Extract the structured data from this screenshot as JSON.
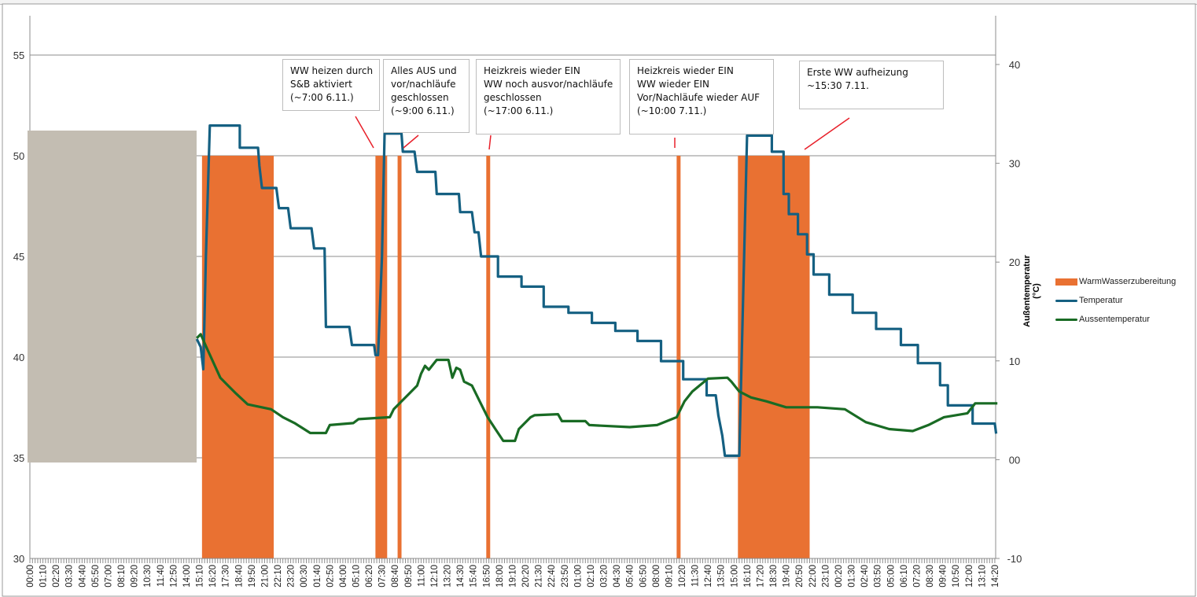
{
  "chart_data": {
    "type": "bar+line",
    "title": "",
    "xlabel": "",
    "ylabel_left": "",
    "ylabel_right": "Außentemperatur (°C)",
    "ylim_left": [
      30,
      55
    ],
    "yticks_left": [
      "30",
      "35",
      "40",
      "45",
      "50",
      "55"
    ],
    "ylim_right": [
      -10,
      40
    ],
    "yticks_right": [
      "-10",
      "00",
      "10",
      "20",
      "30",
      "40"
    ],
    "grid": true,
    "legend_position": "right",
    "x_tick_labels": [
      "00:00",
      "01:10",
      "02:20",
      "03:30",
      "04:40",
      "05:50",
      "07:00",
      "08:10",
      "09:20",
      "10:30",
      "11:40",
      "12:50",
      "14:00",
      "15:10",
      "16:20",
      "17:30",
      "18:40",
      "19:50",
      "21:00",
      "22:10",
      "23:20",
      "00:30",
      "01:40",
      "02:50",
      "04:00",
      "05:10",
      "06:20",
      "07:30",
      "08:40",
      "09:50",
      "11:00",
      "12:10",
      "13:20",
      "14:30",
      "15:40",
      "16:50",
      "18:00",
      "19:10",
      "20:20",
      "21:30",
      "22:40",
      "23:50",
      "01:00",
      "02:10",
      "03:20",
      "04:30",
      "05:40",
      "06:50",
      "08:00",
      "09:10",
      "10:20",
      "11:30",
      "12:40",
      "13:50",
      "15:00",
      "16:10",
      "17:20",
      "18:30",
      "19:40",
      "20:50",
      "22:00",
      "23:10",
      "00:20",
      "01:30",
      "02:40",
      "03:50",
      "05:00",
      "06:10",
      "07:20",
      "08:30",
      "09:40",
      "10:50",
      "12:00",
      "13:10",
      "14:20"
    ],
    "series": [
      {
        "name": "WarmWasserzubereitung",
        "type": "bar",
        "axis": "left",
        "color": "#E97132",
        "active_ranges_by_tick_index": [
          [
            13.2,
            18.7
          ],
          [
            26.5,
            27.4
          ],
          [
            28.2,
            28.5
          ],
          [
            35.0,
            35.3
          ],
          [
            49.6,
            49.9
          ],
          [
            54.3,
            59.8
          ]
        ],
        "value": 50
      },
      {
        "name": "Temperatur",
        "type": "line",
        "axis": "left",
        "color": "#156082",
        "points_by_tick_index": [
          [
            12.8,
            40.9
          ],
          [
            13.1,
            40.5
          ],
          [
            13.3,
            39.4
          ],
          [
            13.5,
            45
          ],
          [
            13.8,
            51.5
          ],
          [
            16.1,
            51.5
          ],
          [
            16.1,
            50.4
          ],
          [
            17.5,
            50.4
          ],
          [
            17.6,
            49.5
          ],
          [
            17.8,
            48.4
          ],
          [
            18.9,
            48.4
          ],
          [
            19.1,
            47.4
          ],
          [
            19.8,
            47.4
          ],
          [
            20.0,
            46.4
          ],
          [
            21.6,
            46.4
          ],
          [
            21.8,
            45.4
          ],
          [
            22.6,
            45.4
          ],
          [
            22.7,
            41.5
          ],
          [
            24.5,
            41.5
          ],
          [
            24.7,
            40.6
          ],
          [
            26.4,
            40.6
          ],
          [
            26.5,
            40.1
          ],
          [
            26.7,
            40.1
          ],
          [
            27.0,
            45
          ],
          [
            27.2,
            51.1
          ],
          [
            28.5,
            51.1
          ],
          [
            28.6,
            50.2
          ],
          [
            29.5,
            50.2
          ],
          [
            29.7,
            49.2
          ],
          [
            31.1,
            49.2
          ],
          [
            31.2,
            48.1
          ],
          [
            32.9,
            48.1
          ],
          [
            33.0,
            47.2
          ],
          [
            33.9,
            47.2
          ],
          [
            34.1,
            46.2
          ],
          [
            34.4,
            46.2
          ],
          [
            34.6,
            45.0
          ],
          [
            35.9,
            45.0
          ],
          [
            35.9,
            44.0
          ],
          [
            37.7,
            44.0
          ],
          [
            37.7,
            43.5
          ],
          [
            39.4,
            43.5
          ],
          [
            39.4,
            42.5
          ],
          [
            41.3,
            42.5
          ],
          [
            41.3,
            42.2
          ],
          [
            43.1,
            42.2
          ],
          [
            43.1,
            41.7
          ],
          [
            44.9,
            41.7
          ],
          [
            44.9,
            41.3
          ],
          [
            46.6,
            41.3
          ],
          [
            46.6,
            40.8
          ],
          [
            48.4,
            40.8
          ],
          [
            48.4,
            39.8
          ],
          [
            50.1,
            39.8
          ],
          [
            50.1,
            38.9
          ],
          [
            51.9,
            38.9
          ],
          [
            51.9,
            38.1
          ],
          [
            52.6,
            38.1
          ],
          [
            52.8,
            37.1
          ],
          [
            53.1,
            36.1
          ],
          [
            53.3,
            35.1
          ],
          [
            54.4,
            35.1
          ],
          [
            55.0,
            51.0
          ],
          [
            56.9,
            51.0
          ],
          [
            56.9,
            50.2
          ],
          [
            57.8,
            50.2
          ],
          [
            57.8,
            48.1
          ],
          [
            58.2,
            48.1
          ],
          [
            58.2,
            47.1
          ],
          [
            58.9,
            47.1
          ],
          [
            58.9,
            46.1
          ],
          [
            59.6,
            46.1
          ],
          [
            59.6,
            45.1
          ],
          [
            60.1,
            45.1
          ],
          [
            60.1,
            44.1
          ],
          [
            61.3,
            44.1
          ],
          [
            61.3,
            43.1
          ],
          [
            63.1,
            43.1
          ],
          [
            63.1,
            42.2
          ],
          [
            64.9,
            42.2
          ],
          [
            64.9,
            41.4
          ],
          [
            66.8,
            41.4
          ],
          [
            66.8,
            40.6
          ],
          [
            68.1,
            40.6
          ],
          [
            68.1,
            39.7
          ],
          [
            69.8,
            39.7
          ],
          [
            69.8,
            38.6
          ],
          [
            70.4,
            38.6
          ],
          [
            70.4,
            37.6
          ],
          [
            72.3,
            37.6
          ],
          [
            72.3,
            36.7
          ],
          [
            74.0,
            36.7
          ],
          [
            74.1,
            36.2
          ]
        ]
      },
      {
        "name": "Aussentemperatur",
        "type": "line",
        "axis": "right",
        "color": "#196B24",
        "points_by_tick_index": [
          [
            12.8,
            12.3
          ],
          [
            13.1,
            12.7
          ],
          [
            13.5,
            11.5
          ],
          [
            14.6,
            8.3
          ],
          [
            15.2,
            7.5
          ],
          [
            15.8,
            6.7
          ],
          [
            16.7,
            5.6
          ],
          [
            18.5,
            5.1
          ],
          [
            19.4,
            4.3
          ],
          [
            20.3,
            3.7
          ],
          [
            21.5,
            2.7
          ],
          [
            22.7,
            2.7
          ],
          [
            23.0,
            3.5
          ],
          [
            24.8,
            3.7
          ],
          [
            25.2,
            4.1
          ],
          [
            27.6,
            4.3
          ],
          [
            27.9,
            5.1
          ],
          [
            28.5,
            5.9
          ],
          [
            29.1,
            6.7
          ],
          [
            29.7,
            7.5
          ],
          [
            30.0,
            8.7
          ],
          [
            30.3,
            9.5
          ],
          [
            30.6,
            9.1
          ],
          [
            31.2,
            10.1
          ],
          [
            32.1,
            10.1
          ],
          [
            32.4,
            8.3
          ],
          [
            32.7,
            9.3
          ],
          [
            33.0,
            9.1
          ],
          [
            33.3,
            7.9
          ],
          [
            33.9,
            7.5
          ],
          [
            34.5,
            5.9
          ],
          [
            35.1,
            4.3
          ],
          [
            35.7,
            3.1
          ],
          [
            36.3,
            1.9
          ],
          [
            37.2,
            1.9
          ],
          [
            37.5,
            3.1
          ],
          [
            38.4,
            4.3
          ],
          [
            38.7,
            4.5
          ],
          [
            40.5,
            4.6
          ],
          [
            40.8,
            3.9
          ],
          [
            42.6,
            3.9
          ],
          [
            42.9,
            3.5
          ],
          [
            46.0,
            3.3
          ],
          [
            48.1,
            3.5
          ],
          [
            49.6,
            4.3
          ],
          [
            50.2,
            5.9
          ],
          [
            50.8,
            6.9
          ],
          [
            52.0,
            8.2
          ],
          [
            53.5,
            8.3
          ],
          [
            53.8,
            7.9
          ],
          [
            54.4,
            6.9
          ],
          [
            55.3,
            6.3
          ],
          [
            56.5,
            5.9
          ],
          [
            58.0,
            5.3
          ],
          [
            60.4,
            5.3
          ],
          [
            62.5,
            5.1
          ],
          [
            64.1,
            3.8
          ],
          [
            65.9,
            3.1
          ],
          [
            67.7,
            2.9
          ],
          [
            68.9,
            3.5
          ],
          [
            70.1,
            4.3
          ],
          [
            71.9,
            4.7
          ],
          [
            72.5,
            5.7
          ],
          [
            74.2,
            5.7
          ]
        ]
      }
    ],
    "annotations": [
      {
        "text": "WW heizen durch\nS&B aktiviert\n(~7:00 6.11.)"
      },
      {
        "text": "Alles AUS und\nvor/nachläufe\ngeschlossen\n(~9:00 6.11.)"
      },
      {
        "text": "Heizkreis wieder EIN\nWW noch ausvor/nachläufe\ngeschlossen\n(~17:00 6.11.)"
      },
      {
        "text": "Heizkreis wieder EIN\nWW wieder EIN\nVor/Nachläufe wieder AUF\n(~10:00 7.11.)"
      },
      {
        "text": "Erste WW aufheizung\n~15:30 7.11."
      }
    ]
  }
}
